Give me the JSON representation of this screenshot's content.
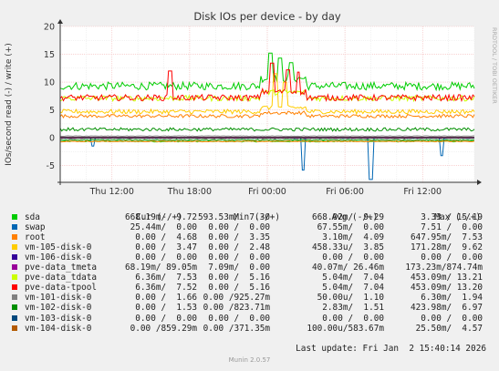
{
  "chart_data": {
    "type": "line",
    "title": "Disk IOs per device - by day",
    "ylabel": "IOs/second read (-) / write (+)",
    "ylim": [
      -8,
      20
    ],
    "yticks": [
      -5,
      0,
      5,
      10,
      15,
      20
    ],
    "xticks": [
      "Thu 12:00",
      "Thu 18:00",
      "Fri 00:00",
      "Fri 06:00",
      "Fri 12:00"
    ],
    "xrange_hours": [
      8,
      40
    ],
    "xtick_hours": [
      12,
      18,
      24,
      30,
      36
    ],
    "grid": true,
    "watermark": "RRDTOOL / TOBI OETIKER",
    "series": [
      {
        "name": "sda",
        "color": "#00cc00",
        "level": 9.3,
        "noise": 0.7,
        "read": -0.67,
        "spikes": [
          [
            24.3,
            15.2
          ],
          [
            25.0,
            14.3
          ],
          [
            25.8,
            13.5
          ]
        ]
      },
      {
        "name": "swap",
        "color": "#0066b3",
        "level": 0,
        "noise": 0,
        "read": -0.03,
        "spikes_read": [
          [
            10.5,
            -1.5
          ],
          [
            26.8,
            -5.8
          ],
          [
            32.0,
            -7.5
          ],
          [
            37.5,
            -3.2
          ]
        ]
      },
      {
        "name": "root",
        "color": "#ff8000",
        "level": 3.9,
        "noise": 0.3,
        "read": -0.65
      },
      {
        "name": "vm-105-disk-0",
        "color": "#ffcc00",
        "level": 4.7,
        "noise": 0.4,
        "read": 0,
        "spikes": [
          [
            24.6,
            11.5
          ],
          [
            25.4,
            10.0
          ]
        ]
      },
      {
        "name": "vm-106-disk-0",
        "color": "#330099",
        "level": 0,
        "noise": 0,
        "read": 0
      },
      {
        "name": "pve-data_tmeta",
        "color": "#990099",
        "level": 0.05,
        "noise": 0,
        "read": -0.04
      },
      {
        "name": "pve-data_tdata",
        "color": "#ccff00",
        "level": 7.1,
        "noise": 0.5,
        "read": 0
      },
      {
        "name": "pve-data-tpool",
        "color": "#ff0000",
        "level": 7.2,
        "noise": 0.55,
        "read": 0,
        "spikes": [
          [
            16.5,
            12.0
          ],
          [
            24.4,
            13.4
          ],
          [
            25.6,
            12.2
          ],
          [
            26.4,
            11.8
          ]
        ]
      },
      {
        "name": "vm-101-disk-0",
        "color": "#808080",
        "level": 0.3,
        "noise": 0.05,
        "read": 0
      },
      {
        "name": "vm-102-disk-0",
        "color": "#008f00",
        "level": 1.5,
        "noise": 0.3,
        "read": -0.4
      },
      {
        "name": "vm-103-disk-0",
        "color": "#00487d",
        "level": 0,
        "noise": 0,
        "read": 0
      },
      {
        "name": "vm-104-disk-0",
        "color": "#b35a00",
        "level": 0,
        "noise": 0,
        "read": 0
      }
    ]
  },
  "legend": {
    "header": "Cur (-/+)          Min (-/+)          Avg (-/+)           Max (-/+)",
    "rows": [
      {
        "name": "sda",
        "color": "#00cc00",
        "cur": "668.19m/  9.72",
        "min": "593.53m/  7.30",
        "avg": "668.02m/  9.29",
        "max": "3.33 / 15.19"
      },
      {
        "name": "swap",
        "color": "#0066b3",
        "cur": "25.44m/  0.00",
        "min": "0.00 /  0.00",
        "avg": "67.55m/  0.00",
        "max": "7.51 /  0.00"
      },
      {
        "name": "root",
        "color": "#ff8000",
        "cur": "0.00 /  4.68",
        "min": "0.00 /  3.35",
        "avg": "3.10m/  4.09",
        "max": "647.95m/  7.53"
      },
      {
        "name": "vm-105-disk-0",
        "color": "#ffcc00",
        "cur": "0.00 /  3.47",
        "min": "0.00 /  2.48",
        "avg": "458.33u/  3.85",
        "max": "171.28m/  9.62"
      },
      {
        "name": "vm-106-disk-0",
        "color": "#330099",
        "cur": "0.00 /  0.00",
        "min": "0.00 /  0.00",
        "avg": "0.00 /  0.00",
        "max": "0.00 /  0.00"
      },
      {
        "name": "pve-data_tmeta",
        "color": "#990099",
        "cur": "68.19m/ 89.05m",
        "min": "7.09m/  0.00",
        "avg": "40.07m/ 26.46m",
        "max": "173.23m/874.74m"
      },
      {
        "name": "pve-data_tdata",
        "color": "#ccff00",
        "cur": "6.36m/  7.53",
        "min": "0.00 /  5.16",
        "avg": "5.04m/  7.04",
        "max": "453.09m/ 13.21"
      },
      {
        "name": "pve-data-tpool",
        "color": "#ff0000",
        "cur": "6.36m/  7.52",
        "min": "0.00 /  5.16",
        "avg": "5.04m/  7.04",
        "max": "453.09m/ 13.20"
      },
      {
        "name": "vm-101-disk-0",
        "color": "#808080",
        "cur": "0.00 /  1.66",
        "min": "0.00 /925.27m",
        "avg": "50.00u/  1.10",
        "max": "6.30m/  1.94"
      },
      {
        "name": "vm-102-disk-0",
        "color": "#008f00",
        "cur": "0.00 /  1.53",
        "min": "0.00 /823.71m",
        "avg": "2.83m/  1.51",
        "max": "423.98m/  6.97"
      },
      {
        "name": "vm-103-disk-0",
        "color": "#00487d",
        "cur": "0.00 /  0.00",
        "min": "0.00 /  0.00",
        "avg": "0.00 /  0.00",
        "max": "0.00 /  0.00"
      },
      {
        "name": "vm-104-disk-0",
        "color": "#b35a00",
        "cur": "0.00 /859.29m",
        "min": "0.00 /371.35m",
        "avg": "100.00u/583.67m",
        "max": "25.50m/  4.57"
      }
    ]
  },
  "last_update": "Last update: Fri Jan  2 15:40:14 2026",
  "footer": "Munin 2.0.57"
}
